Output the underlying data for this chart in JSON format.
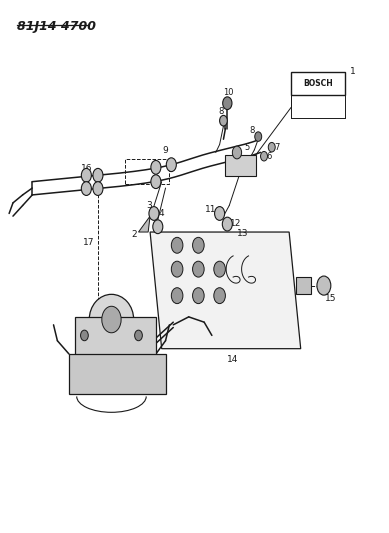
{
  "title": "81J14 4700",
  "background_color": "#ffffff",
  "line_color": "#1a1a1a",
  "figsize": [
    3.89,
    5.33
  ],
  "dpi": 100,
  "bosch_label": "BOSCH"
}
